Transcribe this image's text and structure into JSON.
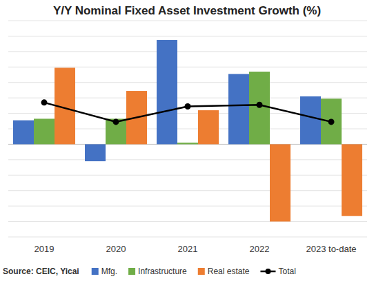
{
  "chart_data": {
    "type": "bar",
    "title": "Y/Y Nominal Fixed Asset Investment Growth (%)",
    "source": "Source: CEIC, Yicai",
    "categories": [
      "2019",
      "2020",
      "2021",
      "2022",
      "2023 to-date"
    ],
    "series": [
      {
        "name": "Mfg.",
        "color": "#4472c4",
        "type": "bar",
        "values": [
          3.1,
          -2.2,
          13.5,
          9.1,
          6.2
        ]
      },
      {
        "name": "Infrastructure",
        "color": "#70ad47",
        "type": "bar",
        "values": [
          3.3,
          3.3,
          0.2,
          9.4,
          5.9
        ]
      },
      {
        "name": "Real estate",
        "color": "#ed7d31",
        "type": "bar",
        "values": [
          9.9,
          6.9,
          4.4,
          -10.0,
          -9.3
        ]
      },
      {
        "name": "Total",
        "color": "#000000",
        "type": "line",
        "marker": "circle",
        "values": [
          5.4,
          2.9,
          4.9,
          5.1,
          2.9
        ]
      }
    ],
    "ylim": [
      -12,
      16
    ],
    "yticks": [
      -12,
      -10,
      -8,
      -6,
      -4,
      -2,
      0,
      2,
      4,
      6,
      8,
      10,
      12,
      14,
      16
    ],
    "grid": true,
    "tick_labels": "x",
    "legend": "bottom"
  }
}
